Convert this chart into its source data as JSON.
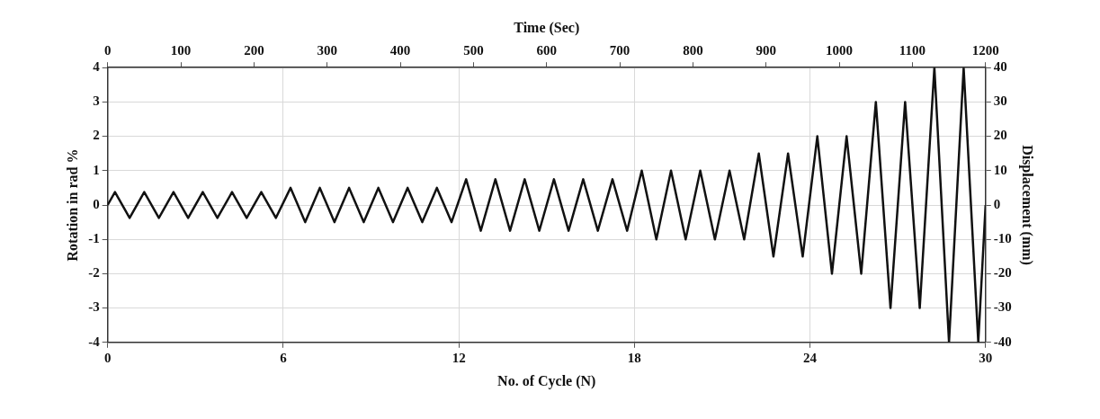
{
  "chart_data": {
    "type": "line",
    "xlabel": "No. of Cycle (N)",
    "ylabel": "Rotation in rad %",
    "y2label": "Displacement (mm)",
    "x2label": "Time (Sec)",
    "xlim": [
      0,
      30
    ],
    "xticks": [
      0,
      6,
      12,
      18,
      24,
      30
    ],
    "x2lim": [
      0,
      1200
    ],
    "x2ticks": [
      0,
      100,
      200,
      300,
      400,
      500,
      600,
      700,
      800,
      900,
      1000,
      1100,
      1200
    ],
    "ylim": [
      -4,
      4
    ],
    "yticks": [
      -4,
      -3,
      -2,
      -1,
      0,
      1,
      2,
      3,
      4
    ],
    "y2lim": [
      -40,
      40
    ],
    "y2ticks": [
      -40,
      -30,
      -20,
      -10,
      0,
      10,
      20,
      30,
      40
    ],
    "grid": true,
    "legend": false,
    "marker": "none",
    "line_style": "solid",
    "series": [
      {
        "color": "#111111",
        "x": [
          0,
          0.25,
          0.75,
          1.25,
          1.75,
          2.25,
          2.75,
          3.25,
          3.75,
          4.25,
          4.75,
          5.25,
          5.75,
          6.25,
          6.75,
          7.25,
          7.75,
          8.25,
          8.75,
          9.25,
          9.75,
          10.25,
          10.75,
          11.25,
          11.75,
          12.25,
          12.75,
          13.25,
          13.75,
          14.25,
          14.75,
          15.25,
          15.75,
          16.25,
          16.75,
          17.25,
          17.75,
          18.25,
          18.75,
          19.25,
          19.75,
          20.25,
          20.75,
          21.25,
          21.75,
          22.25,
          22.75,
          23.25,
          23.75,
          24.25,
          24.75,
          25.25,
          25.75,
          26.25,
          26.75,
          27.25,
          27.75,
          28.25,
          28.75,
          29.25,
          29.75,
          30
        ],
        "values": [
          0,
          0.375,
          -0.375,
          0.375,
          -0.375,
          0.375,
          -0.375,
          0.375,
          -0.375,
          0.375,
          -0.375,
          0.375,
          -0.375,
          0.5,
          -0.5,
          0.5,
          -0.5,
          0.5,
          -0.5,
          0.5,
          -0.5,
          0.5,
          -0.5,
          0.5,
          -0.5,
          0.75,
          -0.75,
          0.75,
          -0.75,
          0.75,
          -0.75,
          0.75,
          -0.75,
          0.75,
          -0.75,
          0.75,
          -0.75,
          1,
          -1,
          1,
          -1,
          1,
          -1,
          1,
          -1,
          1.5,
          -1.5,
          1.5,
          -1.5,
          2,
          -2,
          2,
          -2,
          3,
          -3,
          3,
          -3,
          4,
          -4,
          4,
          -4,
          0
        ]
      }
    ]
  }
}
